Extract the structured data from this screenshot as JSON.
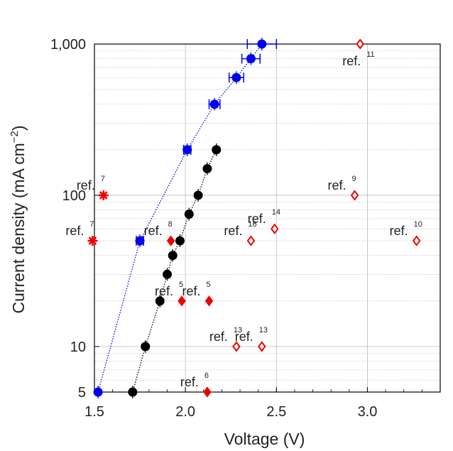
{
  "chart_data": {
    "type": "scatter",
    "title": "",
    "xlabel": "Voltage (V)",
    "ylabel_main": "Current density (mA cm",
    "ylabel_sup": "−2",
    "ylabel_tail": ")",
    "xscale": "linear",
    "yscale": "log",
    "xlim": [
      1.5,
      3.4
    ],
    "ylim": [
      5,
      1000
    ],
    "grid": true,
    "x_ticks": [
      {
        "value": 1.5,
        "label": "1.5"
      },
      {
        "value": 2.0,
        "label": "2.0"
      },
      {
        "value": 2.5,
        "label": "2.5"
      },
      {
        "value": 3.0,
        "label": "3.0"
      }
    ],
    "y_ticks": [
      {
        "value": 5,
        "label": "5"
      },
      {
        "value": 10,
        "label": "10"
      },
      {
        "value": 100,
        "label": "100"
      },
      {
        "value": 1000,
        "label": "1,000"
      }
    ],
    "colors": {
      "blue_series": "#0000ee",
      "black_series": "#000000",
      "reference": "#ee0000",
      "grid": "#bbbbbb",
      "axis": "#000000"
    },
    "series": [
      {
        "name": "blue",
        "marker": "circle",
        "line": "dotted",
        "points": [
          {
            "x": 1.52,
            "y": 5,
            "xerr": 0
          },
          {
            "x": 1.75,
            "y": 50,
            "xerr": 0.02
          },
          {
            "x": 2.01,
            "y": 200,
            "xerr": 0.02
          },
          {
            "x": 2.16,
            "y": 400,
            "xerr": 0.03
          },
          {
            "x": 2.28,
            "y": 600,
            "xerr": 0.04
          },
          {
            "x": 2.36,
            "y": 800,
            "xerr": 0.05
          },
          {
            "x": 2.42,
            "y": 1000,
            "xerr": 0.08
          }
        ]
      },
      {
        "name": "black",
        "marker": "circle",
        "line": "dotted",
        "points": [
          {
            "x": 1.71,
            "y": 5,
            "xerr": 0
          },
          {
            "x": 1.78,
            "y": 10,
            "xerr": 0
          },
          {
            "x": 1.86,
            "y": 20,
            "xerr": 0
          },
          {
            "x": 1.9,
            "y": 30,
            "xerr": 0
          },
          {
            "x": 1.93,
            "y": 40,
            "xerr": 0
          },
          {
            "x": 1.97,
            "y": 50,
            "xerr": 0
          },
          {
            "x": 2.02,
            "y": 75,
            "xerr": 0
          },
          {
            "x": 2.07,
            "y": 100,
            "xerr": 0
          },
          {
            "x": 2.12,
            "y": 150,
            "xerr": 0
          },
          {
            "x": 2.17,
            "y": 200,
            "xerr": 0
          }
        ]
      }
    ],
    "references": [
      {
        "marker": "asterisk",
        "x": 1.55,
        "y": 100,
        "label": "ref.",
        "ref": "7",
        "label_side": "left"
      },
      {
        "marker": "asterisk",
        "x": 1.49,
        "y": 50,
        "label": "ref.",
        "ref": "7",
        "label_side": "left"
      },
      {
        "marker": "diamond-filled",
        "x": 1.92,
        "y": 50,
        "label": "ref.",
        "ref": "8",
        "label_side": "left"
      },
      {
        "marker": "diamond-filled",
        "x": 1.98,
        "y": 20,
        "label": "ref.",
        "ref": "5",
        "label_side": "left"
      },
      {
        "marker": "diamond-filled",
        "x": 2.13,
        "y": 20,
        "label": "ref.",
        "ref": "5",
        "label_side": "left"
      },
      {
        "marker": "diamond-filled",
        "x": 2.12,
        "y": 5,
        "label": "ref.",
        "ref": "6",
        "label_side": "left"
      },
      {
        "marker": "diamond-open",
        "x": 2.96,
        "y": 1000,
        "label": "ref.",
        "ref": "11",
        "label_side": "below"
      },
      {
        "marker": "diamond-open",
        "x": 2.93,
        "y": 100,
        "label": "ref.",
        "ref": "9",
        "label_side": "left"
      },
      {
        "marker": "diamond-open",
        "x": 2.49,
        "y": 60,
        "label": "ref.",
        "ref": "14",
        "label_side": "left"
      },
      {
        "marker": "diamond-open",
        "x": 2.36,
        "y": 50,
        "label": "ref.",
        "ref": "16",
        "label_side": "left"
      },
      {
        "marker": "diamond-open",
        "x": 3.27,
        "y": 50,
        "label": "ref.",
        "ref": "10",
        "label_side": "left"
      },
      {
        "marker": "diamond-open",
        "x": 2.28,
        "y": 10,
        "label": "ref.",
        "ref": "13",
        "label_side": "left"
      },
      {
        "marker": "diamond-open",
        "x": 2.42,
        "y": 10,
        "label": "ref.",
        "ref": "13",
        "label_side": "left"
      }
    ]
  }
}
